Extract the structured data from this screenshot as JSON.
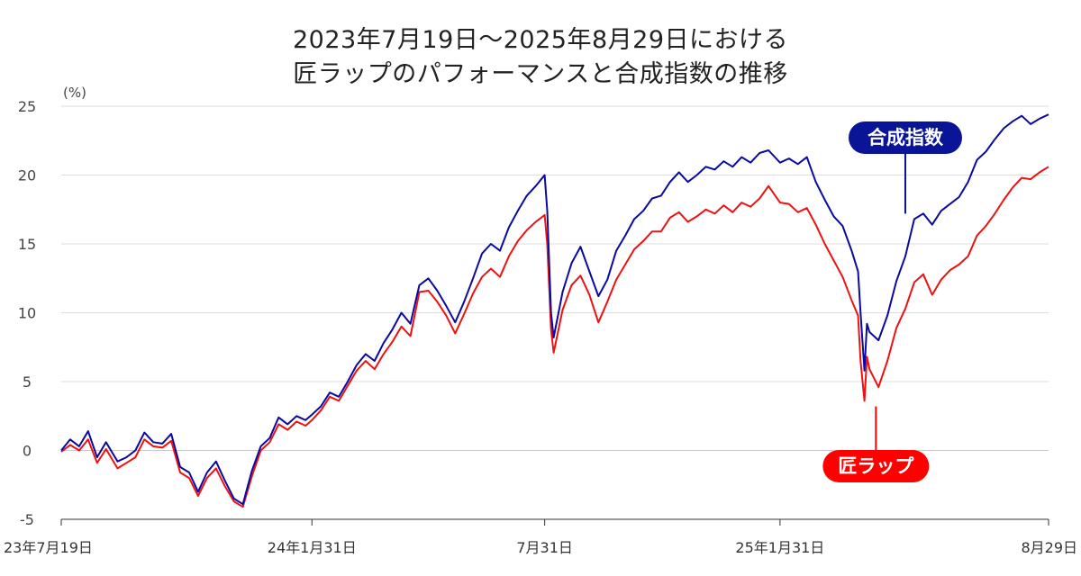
{
  "chart_data": {
    "type": "line",
    "title": "2023年7月19日～2025年8月29日における",
    "subtitle": "匠ラップのパフォーマンスと合成指数の推移",
    "y_unit": "(%)",
    "ylim": [
      -5,
      25
    ],
    "y_ticks": [
      25,
      20,
      15,
      10,
      5,
      0,
      -5
    ],
    "grid": true,
    "x_start": "2023-07-19",
    "x_end": "2025-08-29",
    "x_ticks": [
      {
        "date": "2023-07-19",
        "label": "23年7月19日"
      },
      {
        "date": "2024-01-31",
        "label": "24年1月31日"
      },
      {
        "date": "2024-07-31",
        "label": "7月31日"
      },
      {
        "date": "2025-01-31",
        "label": "25年1月31日"
      },
      {
        "date": "2025-08-29",
        "label": "8月29日"
      }
    ],
    "series": [
      {
        "name": "合成指数",
        "color": "#0a0aa0",
        "label_bg": "#0a1496",
        "points": [
          [
            "2023-07-19",
            0.0
          ],
          [
            "2023-07-26",
            0.8
          ],
          [
            "2023-08-02",
            0.3
          ],
          [
            "2023-08-09",
            1.4
          ],
          [
            "2023-08-16",
            -0.5
          ],
          [
            "2023-08-23",
            0.6
          ],
          [
            "2023-09-01",
            -0.8
          ],
          [
            "2023-09-08",
            -0.5
          ],
          [
            "2023-09-15",
            0.0
          ],
          [
            "2023-09-22",
            1.3
          ],
          [
            "2023-09-29",
            0.6
          ],
          [
            "2023-10-06",
            0.5
          ],
          [
            "2023-10-13",
            1.2
          ],
          [
            "2023-10-20",
            -1.2
          ],
          [
            "2023-10-27",
            -1.6
          ],
          [
            "2023-11-03",
            -3.0
          ],
          [
            "2023-11-10",
            -1.6
          ],
          [
            "2023-11-17",
            -0.8
          ],
          [
            "2023-11-24",
            -2.2
          ],
          [
            "2023-12-01",
            -3.5
          ],
          [
            "2023-12-08",
            -3.9
          ],
          [
            "2023-12-15",
            -1.5
          ],
          [
            "2023-12-22",
            0.3
          ],
          [
            "2023-12-29",
            0.9
          ],
          [
            "2024-01-05",
            2.4
          ],
          [
            "2024-01-12",
            1.9
          ],
          [
            "2024-01-19",
            2.5
          ],
          [
            "2024-01-26",
            2.2
          ],
          [
            "2024-01-31",
            2.6
          ],
          [
            "2024-02-07",
            3.2
          ],
          [
            "2024-02-14",
            4.2
          ],
          [
            "2024-02-21",
            3.9
          ],
          [
            "2024-02-28",
            5.0
          ],
          [
            "2024-03-06",
            6.2
          ],
          [
            "2024-03-13",
            7.0
          ],
          [
            "2024-03-20",
            6.5
          ],
          [
            "2024-03-27",
            7.8
          ],
          [
            "2024-04-03",
            8.8
          ],
          [
            "2024-04-10",
            10.0
          ],
          [
            "2024-04-17",
            9.2
          ],
          [
            "2024-04-24",
            12.0
          ],
          [
            "2024-05-01",
            12.5
          ],
          [
            "2024-05-08",
            11.6
          ],
          [
            "2024-05-15",
            10.5
          ],
          [
            "2024-05-22",
            9.3
          ],
          [
            "2024-05-29",
            10.8
          ],
          [
            "2024-06-05",
            12.5
          ],
          [
            "2024-06-12",
            14.3
          ],
          [
            "2024-06-19",
            15.0
          ],
          [
            "2024-06-26",
            14.5
          ],
          [
            "2024-07-03",
            16.2
          ],
          [
            "2024-07-10",
            17.4
          ],
          [
            "2024-07-17",
            18.5
          ],
          [
            "2024-07-24",
            19.2
          ],
          [
            "2024-07-31",
            20.0
          ],
          [
            "2024-08-02",
            17.4
          ],
          [
            "2024-08-05",
            10.0
          ],
          [
            "2024-08-07",
            8.2
          ],
          [
            "2024-08-14",
            11.5
          ],
          [
            "2024-08-21",
            13.6
          ],
          [
            "2024-08-28",
            14.8
          ],
          [
            "2024-09-04",
            13.0
          ],
          [
            "2024-09-11",
            11.2
          ],
          [
            "2024-09-18",
            12.4
          ],
          [
            "2024-09-25",
            14.5
          ],
          [
            "2024-10-02",
            15.6
          ],
          [
            "2024-10-09",
            16.8
          ],
          [
            "2024-10-16",
            17.4
          ],
          [
            "2024-10-23",
            18.3
          ],
          [
            "2024-10-30",
            18.5
          ],
          [
            "2024-11-06",
            19.5
          ],
          [
            "2024-11-13",
            20.2
          ],
          [
            "2024-11-20",
            19.5
          ],
          [
            "2024-11-27",
            20.0
          ],
          [
            "2024-12-04",
            20.6
          ],
          [
            "2024-12-11",
            20.4
          ],
          [
            "2024-12-18",
            21.0
          ],
          [
            "2024-12-25",
            20.6
          ],
          [
            "2025-01-01",
            21.3
          ],
          [
            "2025-01-08",
            20.9
          ],
          [
            "2025-01-15",
            21.6
          ],
          [
            "2025-01-22",
            21.8
          ],
          [
            "2025-01-31",
            20.9
          ],
          [
            "2025-02-07",
            21.2
          ],
          [
            "2025-02-14",
            20.8
          ],
          [
            "2025-02-21",
            21.3
          ],
          [
            "2025-02-28",
            19.5
          ],
          [
            "2025-03-07",
            18.2
          ],
          [
            "2025-03-14",
            17.0
          ],
          [
            "2025-03-21",
            16.3
          ],
          [
            "2025-03-28",
            14.5
          ],
          [
            "2025-04-02",
            13.0
          ],
          [
            "2025-04-04",
            10.0
          ],
          [
            "2025-04-07",
            5.8
          ],
          [
            "2025-04-09",
            9.2
          ],
          [
            "2025-04-11",
            8.6
          ],
          [
            "2025-04-18",
            8.0
          ],
          [
            "2025-04-25",
            9.8
          ],
          [
            "2025-05-02",
            12.3
          ],
          [
            "2025-05-09",
            14.1
          ],
          [
            "2025-05-16",
            16.8
          ],
          [
            "2025-05-23",
            17.2
          ],
          [
            "2025-05-30",
            16.4
          ],
          [
            "2025-06-06",
            17.4
          ],
          [
            "2025-06-13",
            17.9
          ],
          [
            "2025-06-20",
            18.4
          ],
          [
            "2025-06-27",
            19.5
          ],
          [
            "2025-07-04",
            21.1
          ],
          [
            "2025-07-11",
            21.7
          ],
          [
            "2025-07-18",
            22.6
          ],
          [
            "2025-07-25",
            23.4
          ],
          [
            "2025-08-01",
            23.9
          ],
          [
            "2025-08-08",
            24.3
          ],
          [
            "2025-08-15",
            23.7
          ],
          [
            "2025-08-22",
            24.1
          ],
          [
            "2025-08-29",
            24.4
          ]
        ]
      },
      {
        "name": "匠ラップ",
        "color": "#ee1111",
        "label_bg": "#ff0000",
        "points": [
          [
            "2023-07-19",
            -0.1
          ],
          [
            "2023-07-26",
            0.4
          ],
          [
            "2023-08-02",
            0.0
          ],
          [
            "2023-08-09",
            0.8
          ],
          [
            "2023-08-16",
            -0.9
          ],
          [
            "2023-08-23",
            0.1
          ],
          [
            "2023-09-01",
            -1.3
          ],
          [
            "2023-09-08",
            -0.9
          ],
          [
            "2023-09-15",
            -0.5
          ],
          [
            "2023-09-22",
            0.8
          ],
          [
            "2023-09-29",
            0.3
          ],
          [
            "2023-10-06",
            0.2
          ],
          [
            "2023-10-13",
            0.7
          ],
          [
            "2023-10-20",
            -1.6
          ],
          [
            "2023-10-27",
            -2.0
          ],
          [
            "2023-11-03",
            -3.3
          ],
          [
            "2023-11-10",
            -2.0
          ],
          [
            "2023-11-17",
            -1.3
          ],
          [
            "2023-11-24",
            -2.6
          ],
          [
            "2023-12-01",
            -3.7
          ],
          [
            "2023-12-08",
            -4.1
          ],
          [
            "2023-12-15",
            -1.9
          ],
          [
            "2023-12-22",
            0.0
          ],
          [
            "2023-12-29",
            0.6
          ],
          [
            "2024-01-05",
            1.9
          ],
          [
            "2024-01-12",
            1.5
          ],
          [
            "2024-01-19",
            2.1
          ],
          [
            "2024-01-26",
            1.8
          ],
          [
            "2024-01-31",
            2.2
          ],
          [
            "2024-02-07",
            2.9
          ],
          [
            "2024-02-14",
            3.9
          ],
          [
            "2024-02-21",
            3.6
          ],
          [
            "2024-02-28",
            4.7
          ],
          [
            "2024-03-06",
            5.8
          ],
          [
            "2024-03-13",
            6.5
          ],
          [
            "2024-03-20",
            5.9
          ],
          [
            "2024-03-27",
            7.0
          ],
          [
            "2024-04-03",
            7.9
          ],
          [
            "2024-04-10",
            9.0
          ],
          [
            "2024-04-17",
            8.3
          ],
          [
            "2024-04-24",
            11.5
          ],
          [
            "2024-05-01",
            11.6
          ],
          [
            "2024-05-08",
            10.8
          ],
          [
            "2024-05-15",
            9.8
          ],
          [
            "2024-05-22",
            8.5
          ],
          [
            "2024-05-29",
            9.9
          ],
          [
            "2024-06-05",
            11.4
          ],
          [
            "2024-06-12",
            12.6
          ],
          [
            "2024-06-19",
            13.2
          ],
          [
            "2024-06-26",
            12.6
          ],
          [
            "2024-07-03",
            14.1
          ],
          [
            "2024-07-10",
            15.2
          ],
          [
            "2024-07-17",
            16.0
          ],
          [
            "2024-07-24",
            16.6
          ],
          [
            "2024-07-31",
            17.1
          ],
          [
            "2024-08-02",
            15.0
          ],
          [
            "2024-08-05",
            8.8
          ],
          [
            "2024-08-07",
            7.1
          ],
          [
            "2024-08-14",
            10.2
          ],
          [
            "2024-08-21",
            12.0
          ],
          [
            "2024-08-28",
            12.7
          ],
          [
            "2024-09-04",
            11.3
          ],
          [
            "2024-09-11",
            9.3
          ],
          [
            "2024-09-18",
            10.8
          ],
          [
            "2024-09-25",
            12.4
          ],
          [
            "2024-10-02",
            13.5
          ],
          [
            "2024-10-09",
            14.6
          ],
          [
            "2024-10-16",
            15.2
          ],
          [
            "2024-10-23",
            15.9
          ],
          [
            "2024-10-30",
            15.9
          ],
          [
            "2024-11-06",
            16.9
          ],
          [
            "2024-11-13",
            17.3
          ],
          [
            "2024-11-20",
            16.6
          ],
          [
            "2024-11-27",
            17.0
          ],
          [
            "2024-12-04",
            17.5
          ],
          [
            "2024-12-11",
            17.2
          ],
          [
            "2024-12-18",
            17.8
          ],
          [
            "2024-12-25",
            17.3
          ],
          [
            "2025-01-01",
            18.0
          ],
          [
            "2025-01-08",
            17.7
          ],
          [
            "2025-01-15",
            18.3
          ],
          [
            "2025-01-22",
            19.2
          ],
          [
            "2025-01-31",
            18.0
          ],
          [
            "2025-02-07",
            17.9
          ],
          [
            "2025-02-14",
            17.3
          ],
          [
            "2025-02-21",
            17.6
          ],
          [
            "2025-02-28",
            16.4
          ],
          [
            "2025-03-07",
            15.0
          ],
          [
            "2025-03-14",
            13.8
          ],
          [
            "2025-03-21",
            12.6
          ],
          [
            "2025-03-28",
            10.9
          ],
          [
            "2025-04-02",
            9.8
          ],
          [
            "2025-04-04",
            6.5
          ],
          [
            "2025-04-07",
            3.6
          ],
          [
            "2025-04-09",
            6.8
          ],
          [
            "2025-04-11",
            5.9
          ],
          [
            "2025-04-18",
            4.6
          ],
          [
            "2025-04-25",
            6.5
          ],
          [
            "2025-05-02",
            8.9
          ],
          [
            "2025-05-09",
            10.3
          ],
          [
            "2025-05-16",
            12.2
          ],
          [
            "2025-05-23",
            12.8
          ],
          [
            "2025-05-30",
            11.3
          ],
          [
            "2025-06-06",
            12.4
          ],
          [
            "2025-06-13",
            13.1
          ],
          [
            "2025-06-20",
            13.5
          ],
          [
            "2025-06-27",
            14.1
          ],
          [
            "2025-07-04",
            15.6
          ],
          [
            "2025-07-11",
            16.3
          ],
          [
            "2025-07-18",
            17.2
          ],
          [
            "2025-07-25",
            18.2
          ],
          [
            "2025-08-01",
            19.1
          ],
          [
            "2025-08-08",
            19.8
          ],
          [
            "2025-08-15",
            19.7
          ],
          [
            "2025-08-22",
            20.2
          ],
          [
            "2025-08-29",
            20.6
          ]
        ]
      }
    ],
    "annotations": [
      {
        "series": "合成指数",
        "text": "合成指数",
        "pointer_date": "2025-05-09",
        "pointer_value": 17.2
      },
      {
        "series": "匠ラップ",
        "text": "匠ラップ",
        "pointer_date": "2025-04-16",
        "pointer_value": 3.2
      }
    ]
  }
}
